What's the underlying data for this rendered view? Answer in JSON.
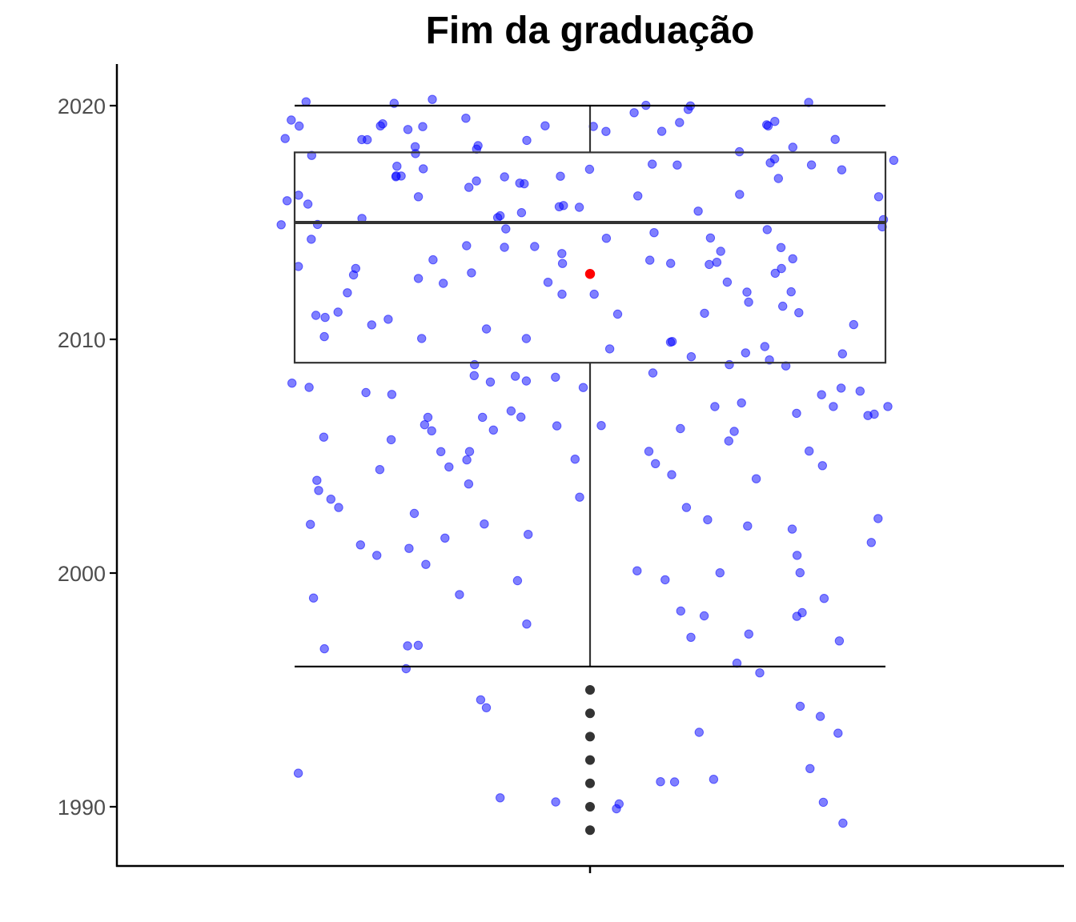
{
  "chart_data": {
    "type": "boxplot-jitter",
    "title": "Fim da graduação",
    "xlabel": "",
    "ylabel": "",
    "ylim": [
      1987.5,
      2021.8
    ],
    "yticks": [
      1990,
      2000,
      2010,
      2020
    ],
    "ytick_labels": [
      "1990",
      "2000",
      "2010",
      "2020"
    ],
    "grid": false,
    "legend": "none",
    "colors": {
      "points": "#0000ff",
      "box": "#333333",
      "mean": "#ff0000",
      "outliers": "#333333",
      "axis": "#000000"
    },
    "box": {
      "whisker_low": 1996,
      "q1": 2009,
      "median": 2015,
      "q3": 2018,
      "whisker_high": 2020
    },
    "mean": 2012.8,
    "outliers": [
      1995,
      1994,
      1993,
      1992,
      1991,
      1990,
      1989
    ],
    "jitter_points": [
      1991.3,
      1991.8,
      1998.8,
      2000.0,
      1999.7,
      2000.2,
      2002.0,
      2002.6,
      2001.8,
      2004.2,
      2003.9,
      2006.0,
      2006.2,
      2006.4,
      2007.7,
      2007.8,
      2008.0,
      2007.0,
      2009.2,
      2009.3,
      2008.9,
      2010.1,
      2012.1,
      2012.0,
      2012.8,
      2013.7,
      2015.2,
      2014.3,
      2013.8,
      2011.3,
      2012.1,
      2010.8,
      2011.0,
      2012.9,
      2013.0,
      2013.4,
      2015.5,
      2016.0,
      2016.4,
      2016.8,
      2017.0,
      2017.2,
      2017.4,
      2018.0,
      2018.5,
      2018.8,
      2019.0,
      2019.2,
      2019.4,
      2019.9,
      2020.2,
      1996.0,
      1991.2,
      1994.0,
      1993.0,
      1990.9,
      1995.8,
      1998.9,
      1998.3,
      2001.5,
      2001.3,
      2000.4,
      2003.7,
      2004.9,
      2005.1,
      2004.4,
      2006.1,
      2006.7,
      2007.1,
      2007.7,
      2008.1,
      2008.3,
      2008.0,
      2010.3,
      2010.0,
      2011.4,
      2011.0,
      2012.3,
      2012.6,
      2013.1,
      2013.3,
      2014.1,
      2014.5,
      2014.8,
      2015.0,
      2015.3,
      2015.6,
      2016.1,
      2016.3,
      2016.7,
      2017.1,
      2017.6,
      2018.2,
      2018.6,
      2018.9,
      2019.1,
      2019.3,
      2020.0,
      2020.3,
      1990.0,
      1990.1,
      1990.3,
      1989.2,
      1993.0,
      1996.0,
      1996.8,
      1997.1,
      1997.5,
      1999.7,
      2000.1,
      2001.9,
      2002.3,
      2004.0,
      2004.4,
      2005.1,
      2005.9,
      2006.2,
      2006.7,
      2007.0,
      2007.9,
      2008.1,
      2009.4,
      2009.7,
      2010.6,
      2011.2,
      2012.6,
      2013.2,
      2013.4,
      2014.0,
      2014.8,
      2015.1,
      2015.8,
      2016.2,
      2016.8,
      2017.3,
      2017.9,
      2018.1,
      2018.7,
      2019.0,
      2019.2,
      2020.2,
      1990.1,
      1990.3,
      1994.2,
      1994.6,
      1996.7,
      1997.9,
      1998.0,
      1998.2,
      2000.9,
      2001.0,
      2002.4,
      2003.1,
      2003.3,
      2004.8,
      2005.0,
      2005.4,
      2006.3,
      2006.9,
      2007.2,
      2008.0,
      2008.4,
      2009.2,
      2009.8,
      2011.2,
      2012.1,
      2012.9,
      2013.3,
      2014.1,
      2014.5,
      2015.3,
      2015.9,
      2016.5,
      2016.9,
      2017.1,
      2017.7,
      2018.1,
      2018.6,
      2019.1,
      2019.3,
      1991.3,
      1994.2,
      1997.3,
      1998.3,
      2001.0,
      2002.4,
      2003.7,
      2005.9,
      2006.3,
      2006.6,
      2007.3,
      2008.3,
      2009.0,
      2009.8,
      2010.1,
      2011.3,
      2012.8,
      2013.3,
      2014.4,
      2015.1,
      2015.8,
      2016.6,
      2017.1,
      2017.6,
      2018.0,
      2018.5,
      2019.2,
      2019.4,
      2020.0,
      2019.5,
      2019.6,
      2019.8,
      2019.0,
      2018.3,
      2017.8,
      2017.5,
      2016.9,
      2016.2,
      2015.4,
      2014.9,
      2014.2,
      2013.6,
      2013.0,
      2012.5,
      2011.8,
      2010.9,
      2010.5,
      2009.6,
      2009.1,
      2008.6,
      2007.5,
      2007.2,
      2006.8,
      2005.5,
      2005.2,
      2004.6,
      2003.0,
      2002.0,
      2001.2,
      2000.6,
      1999.0,
      1997.0
    ]
  }
}
